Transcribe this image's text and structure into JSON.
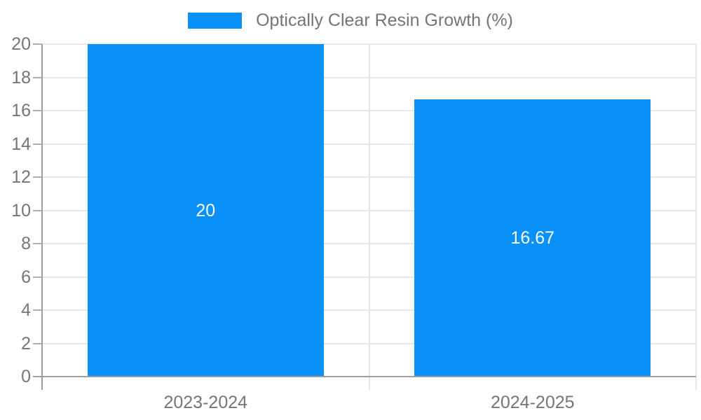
{
  "colors": {
    "bar": "#0990f9",
    "axis_text": "#757575",
    "gridline": "#e6e6e6",
    "tick": "#b0b0b0",
    "axis_line": "#9e9e9e",
    "data_label": "#ffffff",
    "background": "#ffffff"
  },
  "chart_data": {
    "type": "bar",
    "legend_label": "Optically Clear Resin Growth (%)",
    "series": [
      {
        "name": "Optically Clear Resin Growth (%)",
        "values": [
          20,
          16.67
        ]
      }
    ],
    "categories": [
      "2023-2024",
      "2024-2025"
    ],
    "values": [
      20,
      16.67
    ],
    "data_labels": [
      "20",
      "16.67"
    ],
    "title": "",
    "xlabel": "",
    "ylabel": "",
    "ylim": [
      0,
      20
    ],
    "yticks": [
      0,
      2,
      4,
      6,
      8,
      10,
      12,
      14,
      16,
      18,
      20
    ],
    "grid": true,
    "legend_position": "top"
  }
}
